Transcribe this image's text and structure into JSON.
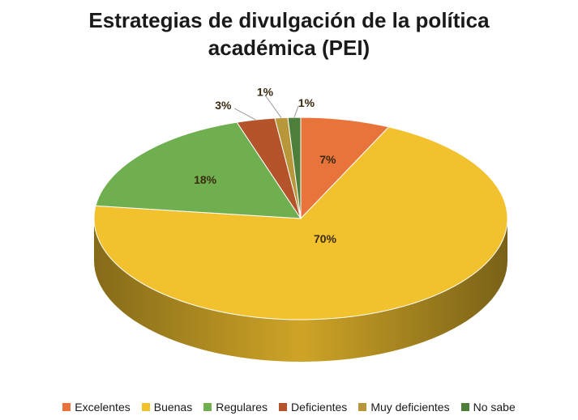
{
  "chart_data": {
    "type": "pie",
    "title_lines": [
      "Estrategias de divulgación de la política",
      "académica (PEI)"
    ],
    "slices": [
      {
        "name": "Excelentes",
        "value": 7,
        "label": "7%",
        "color": "#E8743B"
      },
      {
        "name": "Buenas",
        "value": 70,
        "label": "70%",
        "color": "#F2C12E"
      },
      {
        "name": "Regulares",
        "value": 18,
        "label": "18%",
        "color": "#6FAF4F"
      },
      {
        "name": "Deficientes",
        "value": 3,
        "label": "3%",
        "color": "#B5532A"
      },
      {
        "name": "Muy deficientes",
        "value": 1,
        "label": "1%",
        "color": "#B8963A"
      },
      {
        "name": "No sabe",
        "value": 1,
        "label": "1%",
        "color": "#4E7F3A"
      }
    ],
    "legend_position": "bottom",
    "style": "3d"
  }
}
